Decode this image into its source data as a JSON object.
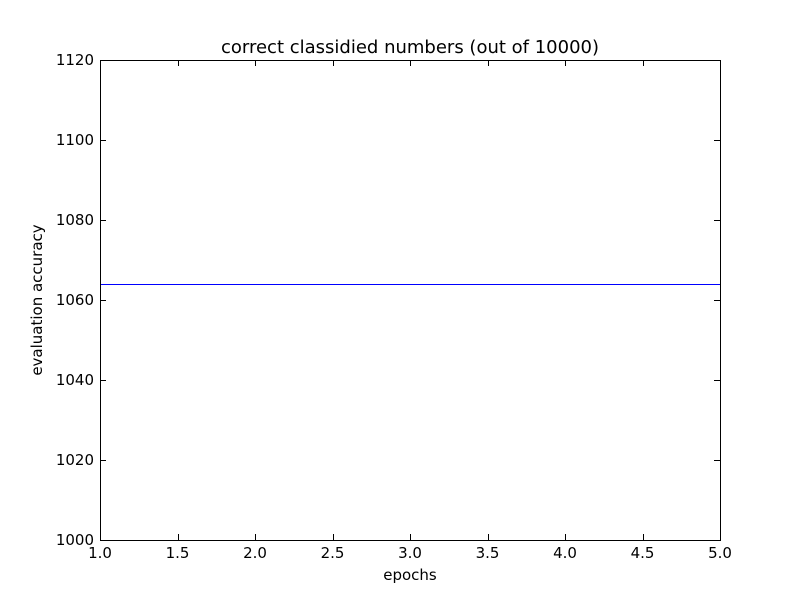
{
  "chart_data": {
    "type": "line",
    "title": "correct classidied numbers (out of 10000)",
    "xlabel": "epochs",
    "ylabel": "evaluation accuracy",
    "xlim": [
      1.0,
      5.0
    ],
    "ylim": [
      1000,
      1120
    ],
    "x_ticks": [
      "1.0",
      "1.5",
      "2.0",
      "2.5",
      "3.0",
      "3.5",
      "4.0",
      "4.5",
      "5.0"
    ],
    "y_ticks": [
      "1000",
      "1020",
      "1040",
      "1060",
      "1080",
      "1100",
      "1120"
    ],
    "grid": false,
    "legend": "none",
    "series": [
      {
        "color": "#0000ff",
        "x": [
          1,
          2,
          3,
          4,
          5
        ],
        "y": [
          1064,
          1064,
          1064,
          1064,
          1064
        ]
      }
    ]
  }
}
